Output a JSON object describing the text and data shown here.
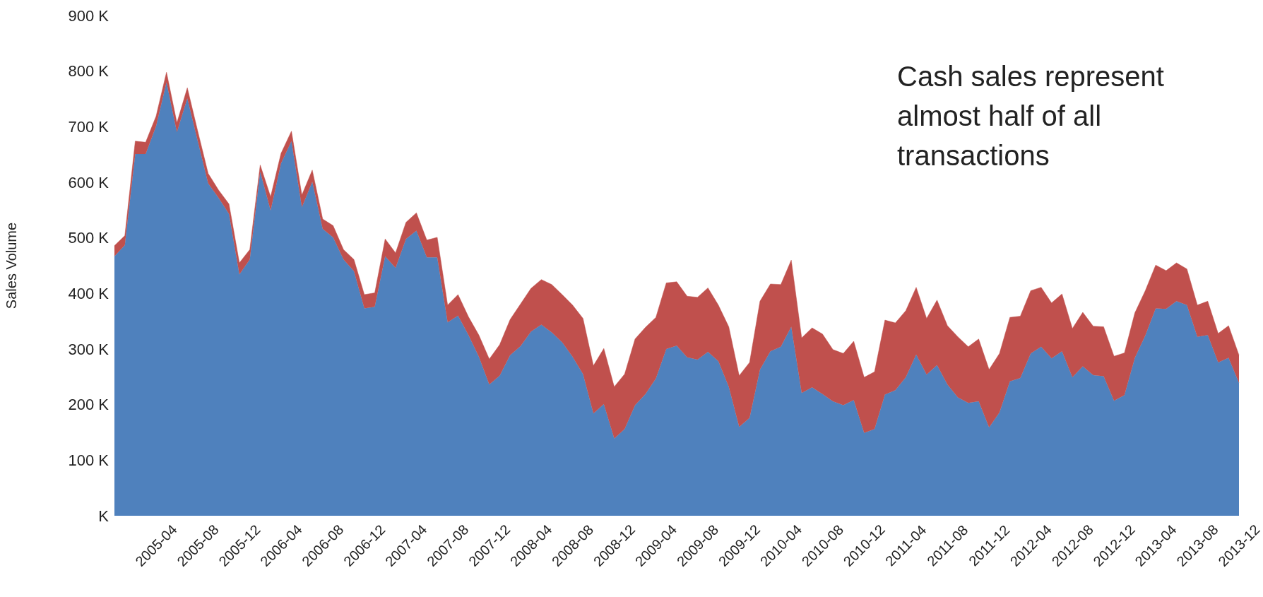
{
  "chart_data": {
    "type": "area",
    "stacked": true,
    "ylabel": "Sales Volume",
    "annotations": [
      "Cash sales represent almost half of all transactions"
    ],
    "categories": [
      null,
      null,
      null,
      null,
      "2005-04",
      null,
      null,
      null,
      "2005-08",
      null,
      null,
      null,
      "2005-12",
      null,
      null,
      null,
      "2006-04",
      null,
      null,
      null,
      "2006-08",
      null,
      null,
      null,
      "2006-12",
      null,
      null,
      null,
      "2007-04",
      null,
      null,
      null,
      "2007-08",
      null,
      null,
      null,
      "2007-12",
      null,
      null,
      null,
      "2008-04",
      null,
      null,
      null,
      "2008-08",
      null,
      null,
      null,
      "2008-12",
      null,
      null,
      null,
      "2009-04",
      null,
      null,
      null,
      "2009-08",
      null,
      null,
      null,
      "2009-12",
      null,
      null,
      null,
      "2010-04",
      null,
      null,
      null,
      "2010-08",
      null,
      null,
      null,
      "2010-12",
      null,
      null,
      null,
      "2011-04",
      null,
      null,
      null,
      "2011-08",
      null,
      null,
      null,
      "2011-12",
      null,
      null,
      null,
      "2012-04",
      null,
      null,
      null,
      "2012-08",
      null,
      null,
      null,
      "2012-12",
      null,
      null,
      null,
      "2013-04",
      null,
      null,
      null,
      "2013-08",
      null,
      null,
      null,
      "2013-12"
    ],
    "series": [
      {
        "color": "#4f81bd",
        "values": [
          467,
          487,
          651,
          651,
          701,
          780,
          690,
          751,
          674,
          598,
          572,
          543,
          434,
          461,
          619,
          549,
          634,
          674,
          555,
          601,
          516,
          501,
          461,
          440,
          373,
          376,
          467,
          446,
          498,
          513,
          465,
          465,
          348,
          360,
          325,
          286,
          236,
          252,
          289,
          305,
          331,
          344,
          330,
          312,
          286,
          255,
          184,
          201,
          139,
          156,
          199,
          219,
          247,
          300,
          306,
          285,
          281,
          295,
          278,
          232,
          160,
          176,
          263,
          296,
          304,
          340,
          221,
          231,
          219,
          206,
          199,
          208,
          149,
          156,
          218,
          226,
          249,
          290,
          254,
          271,
          236,
          213,
          203,
          206,
          159,
          186,
          242,
          248,
          292,
          304,
          283,
          296,
          249,
          269,
          253,
          251,
          207,
          217,
          284,
          324,
          373,
          372,
          386,
          379,
          322,
          325,
          276,
          284,
          239
        ]
      },
      {
        "color": "#c0504d",
        "values": [
          19,
          17,
          23,
          21,
          18,
          18,
          17,
          19,
          18,
          18,
          14,
          18,
          21,
          18,
          12,
          25,
          18,
          18,
          22,
          21,
          18,
          21,
          18,
          21,
          25,
          25,
          31,
          27,
          30,
          32,
          31,
          36,
          31,
          38,
          33,
          39,
          46,
          56,
          64,
          76,
          78,
          81,
          86,
          86,
          93,
          100,
          86,
          100,
          93,
          99,
          119,
          120,
          110,
          119,
          115,
          110,
          112,
          115,
          101,
          108,
          92,
          100,
          123,
          121,
          112,
          120,
          99,
          107,
          108,
          93,
          93,
          106,
          100,
          103,
          134,
          121,
          120,
          121,
          101,
          117,
          106,
          109,
          101,
          112,
          104,
          106,
          115,
          111,
          113,
          107,
          100,
          103,
          88,
          97,
          88,
          89,
          80,
          76,
          81,
          81,
          78,
          69,
          69,
          65,
          57,
          61,
          52,
          58,
          50
        ]
      }
    ],
    "ylim": [
      0,
      900
    ],
    "yticks": [
      {
        "value": 0,
        "label": "K"
      },
      {
        "value": 100,
        "label": "100 K"
      },
      {
        "value": 200,
        "label": "200 K"
      },
      {
        "value": 300,
        "label": "300 K"
      },
      {
        "value": 400,
        "label": "400 K"
      },
      {
        "value": 500,
        "label": "500 K"
      },
      {
        "value": 600,
        "label": "600 K"
      },
      {
        "value": 700,
        "label": "700 K"
      },
      {
        "value": 800,
        "label": "800 K"
      },
      {
        "value": 900,
        "label": "900 K"
      }
    ]
  }
}
